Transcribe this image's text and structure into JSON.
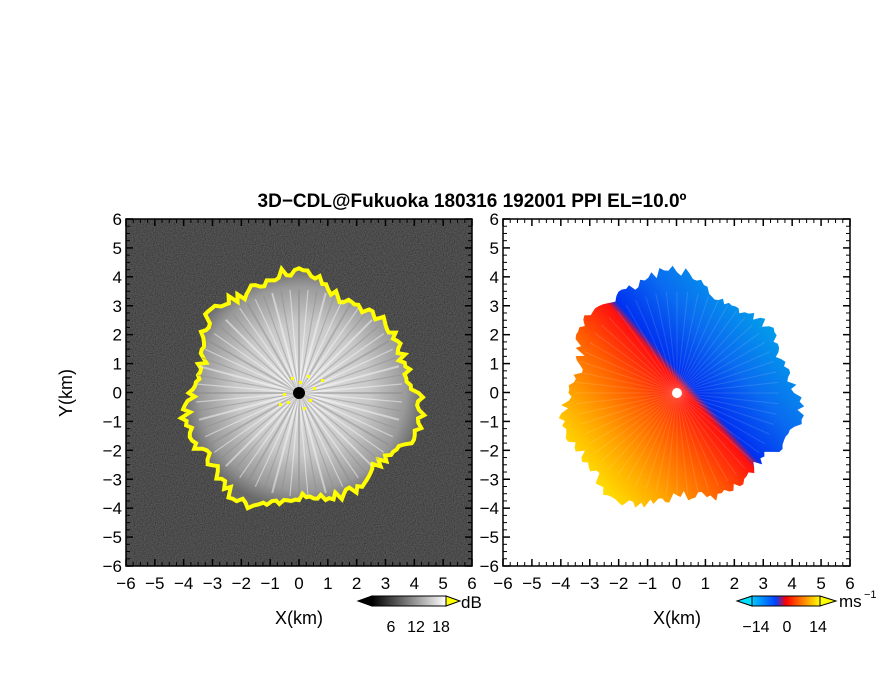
{
  "title": "3D−CDL@Fukuoka 180316 192001 PPI EL=10.0º",
  "chart_data": [
    {
      "type": "heatmap",
      "panel": "left",
      "xlabel": "X(km)",
      "ylabel": "Y(km)",
      "xlim": [
        -6,
        6
      ],
      "ylim": [
        -6,
        6
      ],
      "xticks": [
        "−6",
        "−5",
        "−4",
        "−3",
        "−2",
        "−1",
        "0",
        "1",
        "2",
        "3",
        "4",
        "5",
        "6"
      ],
      "yticks": [
        "6",
        "5",
        "4",
        "3",
        "2",
        "1",
        "0",
        "−1",
        "−2",
        "−3",
        "−4",
        "−5",
        "−6"
      ],
      "colorbar": {
        "unit": "dB",
        "ticks": [
          "6",
          "12",
          "18"
        ],
        "range": [
          0,
          24
        ],
        "colors": [
          "#000000",
          "#ffffff"
        ],
        "over_color": "#ffff00"
      },
      "background_color": "#1a1a1a",
      "echo_radius_km": 3.9,
      "rim_color": "#ffff00"
    },
    {
      "type": "heatmap",
      "panel": "right",
      "xlabel": "X(km)",
      "xlim": [
        -6,
        6
      ],
      "ylim": [
        -6,
        6
      ],
      "xticks": [
        "−6",
        "−5",
        "−4",
        "−3",
        "−2",
        "−1",
        "0",
        "1",
        "2",
        "3",
        "4",
        "5",
        "6"
      ],
      "yticks": [
        "6",
        "5",
        "4",
        "3",
        "2",
        "1",
        "0",
        "−1",
        "−2",
        "−3",
        "−4",
        "−5",
        "−6"
      ],
      "colorbar": {
        "unit": "ms",
        "unit_exponent": "−1",
        "ticks": [
          "−14",
          "0",
          "14"
        ],
        "range": [
          -20,
          20
        ],
        "colors": [
          "#00b4e6",
          "#0040ff",
          "#ff0000",
          "#ffff00"
        ]
      },
      "echo_radius_km": 3.9
    }
  ]
}
